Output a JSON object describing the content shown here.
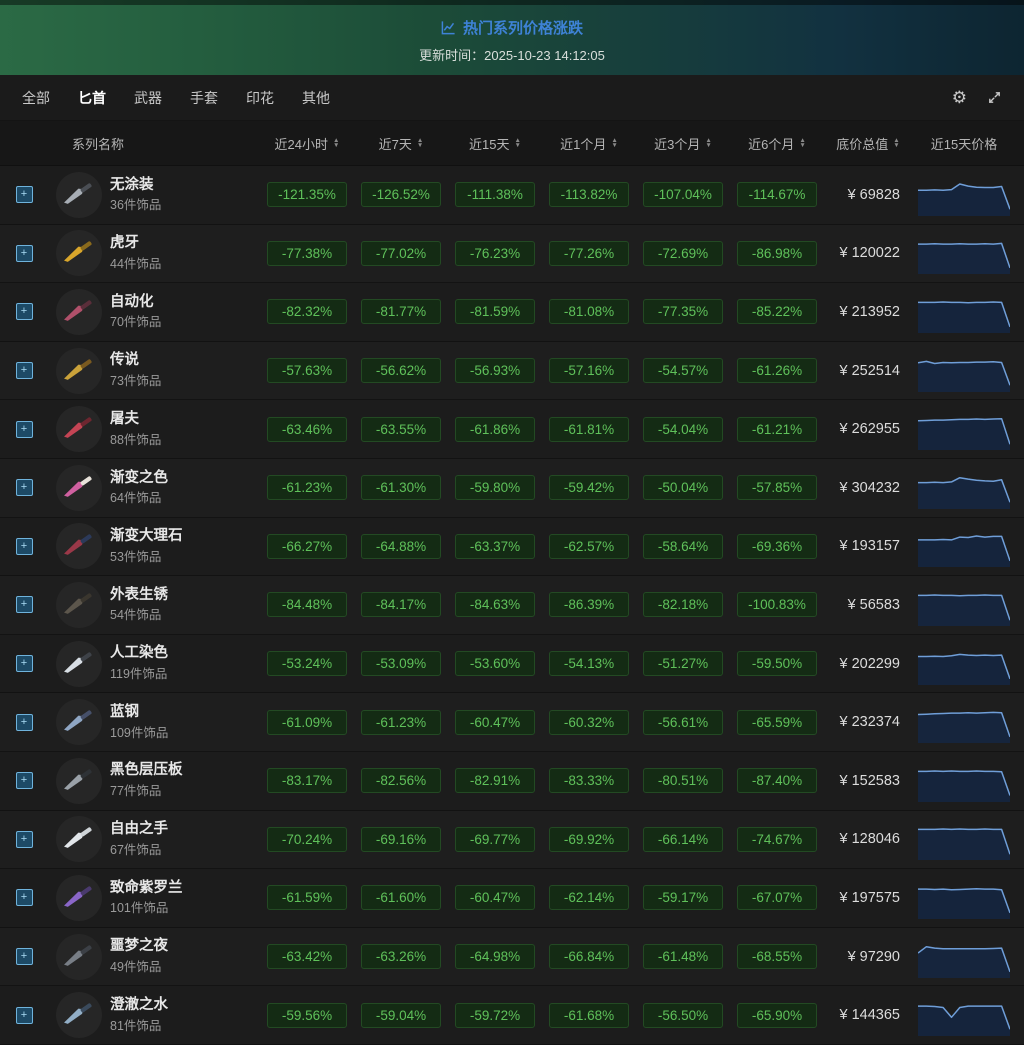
{
  "banner": {
    "title": "热门系列价格涨跌",
    "updated_label": "更新时间：",
    "updated_time": "2025-10-23 14:12:05",
    "title_color": "#3e82d6"
  },
  "tabs": [
    {
      "label": "全部",
      "active": false
    },
    {
      "label": "匕首",
      "active": true
    },
    {
      "label": "武器",
      "active": false
    },
    {
      "label": "手套",
      "active": false
    },
    {
      "label": "印花",
      "active": false
    },
    {
      "label": "其他",
      "active": false
    }
  ],
  "toolbar_icons": {
    "settings": "gear-icon",
    "fullscreen": "expand-icon"
  },
  "table": {
    "name_column": "系列名称",
    "columns": [
      {
        "label": "近24小时",
        "sortable": true
      },
      {
        "label": "近7天",
        "sortable": true
      },
      {
        "label": "近15天",
        "sortable": true
      },
      {
        "label": "近1个月",
        "sortable": true
      },
      {
        "label": "近3个月",
        "sortable": true
      },
      {
        "label": "近6个月",
        "sortable": true
      },
      {
        "label": "底价总值",
        "sortable": true
      },
      {
        "label": "近15天价格",
        "sortable": false
      }
    ],
    "rows": [
      {
        "name": "无涂装",
        "count": "36件饰品",
        "p24h": "-121.35%",
        "p7d": "-126.52%",
        "p15d": "-111.38%",
        "p1m": "-113.82%",
        "p3m": "-107.04%",
        "p6m": "-114.67%",
        "price": "¥ 69828",
        "blade": "#a7adb4",
        "handle": "#4a4e54",
        "spark": [
          0.62,
          0.62,
          0.63,
          0.62,
          0.64,
          0.8,
          0.74,
          0.71,
          0.7,
          0.7,
          0.73,
          0.08
        ]
      },
      {
        "name": "虎牙",
        "count": "44件饰品",
        "p24h": "-77.38%",
        "p7d": "-77.02%",
        "p15d": "-76.23%",
        "p1m": "-77.26%",
        "p3m": "-72.69%",
        "p6m": "-86.98%",
        "price": "¥ 120022",
        "blade": "#d9a62b",
        "handle": "#8a6a1c",
        "spark": [
          0.74,
          0.74,
          0.75,
          0.74,
          0.74,
          0.75,
          0.74,
          0.74,
          0.75,
          0.74,
          0.76,
          0.06
        ]
      },
      {
        "name": "自动化",
        "count": "70件饰品",
        "p24h": "-82.32%",
        "p7d": "-81.77%",
        "p15d": "-81.59%",
        "p1m": "-81.08%",
        "p3m": "-77.35%",
        "p6m": "-85.22%",
        "price": "¥ 213952",
        "blade": "#b0506a",
        "handle": "#5a2e3a",
        "spark": [
          0.76,
          0.76,
          0.76,
          0.77,
          0.76,
          0.76,
          0.75,
          0.76,
          0.76,
          0.77,
          0.76,
          0.06
        ]
      },
      {
        "name": "传说",
        "count": "73件饰品",
        "p24h": "-57.63%",
        "p7d": "-56.62%",
        "p15d": "-56.93%",
        "p1m": "-57.16%",
        "p3m": "-54.57%",
        "p6m": "-61.26%",
        "price": "¥ 252514",
        "blade": "#caa23a",
        "handle": "#7a5a20",
        "spark": [
          0.72,
          0.76,
          0.7,
          0.73,
          0.72,
          0.73,
          0.73,
          0.74,
          0.74,
          0.75,
          0.73,
          0.08
        ]
      },
      {
        "name": "屠夫",
        "count": "88件饰品",
        "p24h": "-63.46%",
        "p7d": "-63.55%",
        "p15d": "-61.86%",
        "p1m": "-61.81%",
        "p3m": "-54.04%",
        "p6m": "-61.21%",
        "price": "¥ 262955",
        "blade": "#c44454",
        "handle": "#6e2630",
        "spark": [
          0.72,
          0.73,
          0.74,
          0.74,
          0.75,
          0.76,
          0.76,
          0.77,
          0.76,
          0.77,
          0.78,
          0.05
        ]
      },
      {
        "name": "渐变之色",
        "count": "64件饰品",
        "p24h": "-61.23%",
        "p7d": "-61.30%",
        "p15d": "-59.80%",
        "p1m": "-59.42%",
        "p3m": "-50.04%",
        "p6m": "-57.85%",
        "price": "¥ 304232",
        "blade": "#d060a0",
        "handle": "#e8e2da",
        "spark": [
          0.64,
          0.64,
          0.65,
          0.64,
          0.66,
          0.78,
          0.74,
          0.71,
          0.69,
          0.68,
          0.72,
          0.08
        ]
      },
      {
        "name": "渐变大理石",
        "count": "53件饰品",
        "p24h": "-66.27%",
        "p7d": "-64.88%",
        "p15d": "-63.37%",
        "p1m": "-62.57%",
        "p3m": "-58.64%",
        "p6m": "-69.36%",
        "price": "¥ 193157",
        "blade": "#9a3848",
        "handle": "#2c3a5a",
        "spark": [
          0.66,
          0.66,
          0.66,
          0.67,
          0.66,
          0.74,
          0.73,
          0.77,
          0.74,
          0.76,
          0.76,
          0.06
        ]
      },
      {
        "name": "外表生锈",
        "count": "54件饰品",
        "p24h": "-84.48%",
        "p7d": "-84.17%",
        "p15d": "-84.63%",
        "p1m": "-86.39%",
        "p3m": "-82.18%",
        "p6m": "-100.83%",
        "price": "¥ 56583",
        "blade": "#5c564c",
        "handle": "#3a362e",
        "spark": [
          0.76,
          0.76,
          0.77,
          0.76,
          0.76,
          0.75,
          0.76,
          0.76,
          0.77,
          0.76,
          0.76,
          0.05
        ]
      },
      {
        "name": "人工染色",
        "count": "119件饰品",
        "p24h": "-53.24%",
        "p7d": "-53.09%",
        "p15d": "-53.60%",
        "p1m": "-54.13%",
        "p3m": "-51.27%",
        "p6m": "-59.50%",
        "price": "¥ 202299",
        "blade": "#d8dee4",
        "handle": "#3e4248",
        "spark": [
          0.7,
          0.7,
          0.71,
          0.7,
          0.72,
          0.76,
          0.74,
          0.73,
          0.74,
          0.73,
          0.74,
          0.06
        ]
      },
      {
        "name": "蓝钢",
        "count": "109件饰品",
        "p24h": "-61.09%",
        "p7d": "-61.23%",
        "p15d": "-60.47%",
        "p1m": "-60.32%",
        "p3m": "-56.61%",
        "p6m": "-65.59%",
        "price": "¥ 232374",
        "blade": "#8fa6c4",
        "handle": "#46506a",
        "spark": [
          0.7,
          0.71,
          0.72,
          0.73,
          0.74,
          0.74,
          0.75,
          0.74,
          0.75,
          0.76,
          0.75,
          0.06
        ]
      },
      {
        "name": "黑色层压板",
        "count": "77件饰品",
        "p24h": "-83.17%",
        "p7d": "-82.56%",
        "p15d": "-82.91%",
        "p1m": "-83.33%",
        "p3m": "-80.51%",
        "p6m": "-87.40%",
        "price": "¥ 152583",
        "blade": "#9aa1a8",
        "handle": "#2e3236",
        "spark": [
          0.76,
          0.76,
          0.77,
          0.76,
          0.77,
          0.76,
          0.76,
          0.77,
          0.76,
          0.76,
          0.75,
          0.07
        ]
      },
      {
        "name": "自由之手",
        "count": "67件饰品",
        "p24h": "-70.24%",
        "p7d": "-69.16%",
        "p15d": "-69.77%",
        "p1m": "-69.92%",
        "p3m": "-66.14%",
        "p6m": "-74.67%",
        "price": "¥ 128046",
        "blade": "#e2e6ea",
        "handle": "#cfd4d8",
        "spark": [
          0.76,
          0.76,
          0.76,
          0.77,
          0.76,
          0.77,
          0.76,
          0.76,
          0.77,
          0.76,
          0.76,
          0.05
        ]
      },
      {
        "name": "致命紫罗兰",
        "count": "101件饰品",
        "p24h": "-61.59%",
        "p7d": "-61.60%",
        "p15d": "-60.47%",
        "p1m": "-62.14%",
        "p3m": "-59.17%",
        "p6m": "-67.07%",
        "price": "¥ 197575",
        "blade": "#8a66c8",
        "handle": "#4a3a6e",
        "spark": [
          0.74,
          0.74,
          0.73,
          0.74,
          0.72,
          0.73,
          0.74,
          0.75,
          0.74,
          0.74,
          0.72,
          0.06
        ]
      },
      {
        "name": "噩梦之夜",
        "count": "49件饰品",
        "p24h": "-63.42%",
        "p7d": "-63.26%",
        "p15d": "-64.98%",
        "p1m": "-66.84%",
        "p3m": "-61.48%",
        "p6m": "-68.55%",
        "price": "¥ 97290",
        "blade": "#787e86",
        "handle": "#3c4046",
        "spark": [
          0.6,
          0.78,
          0.74,
          0.72,
          0.72,
          0.72,
          0.72,
          0.72,
          0.72,
          0.73,
          0.74,
          0.06
        ]
      },
      {
        "name": "澄澈之水",
        "count": "81件饰品",
        "p24h": "-59.56%",
        "p7d": "-59.04%",
        "p15d": "-59.72%",
        "p1m": "-61.68%",
        "p3m": "-56.50%",
        "p6m": "-65.90%",
        "price": "¥ 144365",
        "blade": "#92aec6",
        "handle": "#3a4a5c",
        "spark": [
          0.74,
          0.74,
          0.73,
          0.7,
          0.42,
          0.7,
          0.74,
          0.74,
          0.74,
          0.74,
          0.74,
          0.08
        ]
      }
    ]
  },
  "colors": {
    "badge_text": "#5fc15a",
    "badge_bg": "#142b14",
    "spark_line": "#6f9ed8",
    "spark_fill": "#152640",
    "banner_gradient_left": "#2b6a45",
    "banner_gradient_right": "#0d2531"
  }
}
